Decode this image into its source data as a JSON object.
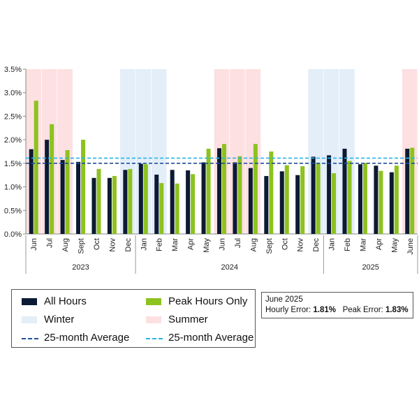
{
  "chart_data": {
    "type": "bar",
    "categories": [
      "Jun",
      "Jul",
      "Aug",
      "Sept",
      "Oct",
      "Nov",
      "Dec",
      "Jan",
      "Feb",
      "Mar",
      "Apr",
      "May",
      "Jun",
      "Jul",
      "Aug",
      "Sept",
      "Oct",
      "Nov",
      "Dec",
      "Jan",
      "Feb",
      "Mar",
      "Apr",
      "May",
      "June"
    ],
    "years": [
      {
        "label": "2023",
        "start": 0,
        "end": 6
      },
      {
        "label": "2024",
        "start": 7,
        "end": 18
      },
      {
        "label": "2025",
        "start": 19,
        "end": 24
      }
    ],
    "series": [
      {
        "name": "All Hours",
        "color": "#0c1a33",
        "values": [
          1.8,
          2.0,
          1.57,
          1.53,
          1.19,
          1.19,
          1.36,
          1.49,
          1.26,
          1.36,
          1.35,
          1.52,
          1.82,
          1.52,
          1.4,
          1.23,
          1.33,
          1.25,
          1.64,
          1.67,
          1.81,
          1.48,
          1.45,
          1.31,
          1.81
        ]
      },
      {
        "name": "Peak Hours Only",
        "color": "#8dc21f",
        "values": [
          2.83,
          2.33,
          1.78,
          2.0,
          1.38,
          1.23,
          1.38,
          1.48,
          1.08,
          1.07,
          1.27,
          1.81,
          1.91,
          1.65,
          1.91,
          1.75,
          1.46,
          1.44,
          1.51,
          1.29,
          1.55,
          1.51,
          1.34,
          1.45,
          1.83
        ]
      }
    ],
    "averages": [
      {
        "name": "25-month Average",
        "value": 1.5,
        "color": "#1f4e9a"
      },
      {
        "name": "25-month Average",
        "value": 1.61,
        "color": "#27b5e8"
      }
    ],
    "bands": [
      {
        "season": "summer",
        "start": 0,
        "end": 2
      },
      {
        "season": "winter",
        "start": 6,
        "end": 8
      },
      {
        "season": "summer",
        "start": 12,
        "end": 14
      },
      {
        "season": "winter",
        "start": 18,
        "end": 20
      },
      {
        "season": "summer",
        "start": 24,
        "end": 24
      }
    ],
    "band_colors": {
      "summer": "#fde0e2",
      "winter": "#e3eef9"
    },
    "ylim": [
      0,
      3.5
    ],
    "yticks": [
      "0.0%",
      "0.5%",
      "1.0%",
      "1.5%",
      "2.0%",
      "2.5%",
      "3.0%",
      "3.5%"
    ],
    "ytick_values": [
      0,
      0.5,
      1.0,
      1.5,
      2.0,
      2.5,
      3.0,
      3.5
    ]
  },
  "legend": {
    "all_hours": "All Hours",
    "peak_hours": "Peak Hours Only",
    "winter": "Winter",
    "summer": "Summer",
    "avg_all": "25-month Average",
    "avg_peak": "25-month Average",
    "colors": {
      "all": "#0c1a33",
      "peak": "#8dc21f",
      "winter": "#e3eef9",
      "summer": "#fde0e2",
      "avg_all": "#1f4e9a",
      "avg_peak": "#27b5e8"
    }
  },
  "error_box": {
    "title": "June 2025",
    "hourly_label": "Hourly Error:",
    "hourly_value": "1.81%",
    "peak_label": "Peak Error:",
    "peak_value": "1.83%"
  }
}
